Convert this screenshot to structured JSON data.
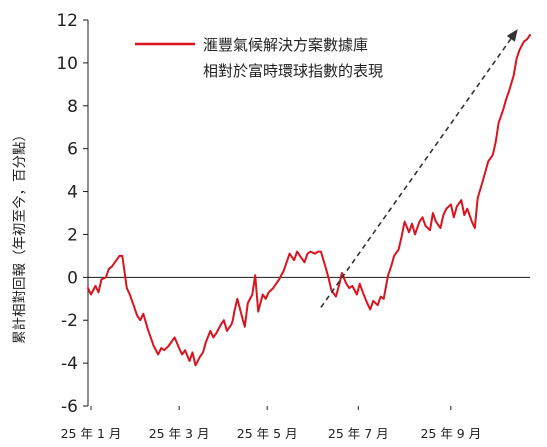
{
  "colors": {
    "series": "#d9141e",
    "axis": "#1a1a1a",
    "trend_arrow": "#333333"
  },
  "chart_data": {
    "type": "line",
    "title": "",
    "xlabel": "",
    "ylabel": "累計相對回報（年初至今，百分點）",
    "ylim": [
      -6,
      12
    ],
    "yticks": [
      "12",
      "10",
      "8",
      "6",
      "4",
      "2",
      "0",
      "-2",
      "-4",
      "-6"
    ],
    "xlim": [
      "2025-01-01",
      "2025-10-24"
    ],
    "xtick_labels": [
      {
        "date": "2025-01-03",
        "label": "25 年 1 月"
      },
      {
        "date": "2025-03-03",
        "label": "25 年 3 月"
      },
      {
        "date": "2025-05-01",
        "label": "25 年 5 月"
      },
      {
        "date": "2025-07-01",
        "label": "25 年 7 月"
      },
      {
        "date": "2025-09-01",
        "label": "25 年 9 月"
      }
    ],
    "grid": false,
    "legend_position": "top",
    "series": [
      {
        "name": "滙豐氣候解決方案數據庫相對於富時環球指數的表現",
        "color": "#d9141e",
        "points": [
          [
            "2025-01-01",
            -0.5
          ],
          [
            "2025-01-03",
            -0.8
          ],
          [
            "2025-01-06",
            -0.4
          ],
          [
            "2025-01-08",
            -0.7
          ],
          [
            "2025-01-10",
            -0.1
          ],
          [
            "2025-01-13",
            0.0
          ],
          [
            "2025-01-15",
            0.4
          ],
          [
            "2025-01-17",
            0.5
          ],
          [
            "2025-01-20",
            0.8
          ],
          [
            "2025-01-22",
            1.0
          ],
          [
            "2025-01-24",
            1.0
          ],
          [
            "2025-01-27",
            -0.5
          ],
          [
            "2025-01-29",
            -0.8
          ],
          [
            "2025-01-31",
            -1.2
          ],
          [
            "2025-02-03",
            -1.8
          ],
          [
            "2025-02-05",
            -2.0
          ],
          [
            "2025-02-07",
            -1.7
          ],
          [
            "2025-02-10",
            -2.4
          ],
          [
            "2025-02-12",
            -2.8
          ],
          [
            "2025-02-14",
            -3.2
          ],
          [
            "2025-02-17",
            -3.6
          ],
          [
            "2025-02-19",
            -3.3
          ],
          [
            "2025-02-21",
            -3.4
          ],
          [
            "2025-02-24",
            -3.2
          ],
          [
            "2025-02-26",
            -3.0
          ],
          [
            "2025-02-28",
            -2.8
          ],
          [
            "2025-03-03",
            -3.3
          ],
          [
            "2025-03-05",
            -3.6
          ],
          [
            "2025-03-07",
            -3.4
          ],
          [
            "2025-03-10",
            -3.9
          ],
          [
            "2025-03-12",
            -3.5
          ],
          [
            "2025-03-14",
            -4.1
          ],
          [
            "2025-03-17",
            -3.7
          ],
          [
            "2025-03-19",
            -3.5
          ],
          [
            "2025-03-21",
            -3.0
          ],
          [
            "2025-03-24",
            -2.5
          ],
          [
            "2025-03-26",
            -2.8
          ],
          [
            "2025-03-28",
            -2.6
          ],
          [
            "2025-03-31",
            -2.2
          ],
          [
            "2025-04-02",
            -2.0
          ],
          [
            "2025-04-04",
            -2.5
          ],
          [
            "2025-04-07",
            -2.2
          ],
          [
            "2025-04-08",
            -2.0
          ],
          [
            "2025-04-09",
            -1.6
          ],
          [
            "2025-04-11",
            -1.0
          ],
          [
            "2025-04-14",
            -1.8
          ],
          [
            "2025-04-16",
            -2.3
          ],
          [
            "2025-04-18",
            -1.2
          ],
          [
            "2025-04-21",
            -0.8
          ],
          [
            "2025-04-23",
            0.1
          ],
          [
            "2025-04-25",
            -1.6
          ],
          [
            "2025-04-28",
            -0.8
          ],
          [
            "2025-04-30",
            -1.0
          ],
          [
            "2025-05-02",
            -0.7
          ],
          [
            "2025-05-05",
            -0.5
          ],
          [
            "2025-05-07",
            -0.3
          ],
          [
            "2025-05-09",
            -0.1
          ],
          [
            "2025-05-12",
            0.3
          ],
          [
            "2025-05-14",
            0.7
          ],
          [
            "2025-05-16",
            1.1
          ],
          [
            "2025-05-19",
            0.8
          ],
          [
            "2025-05-21",
            1.2
          ],
          [
            "2025-05-23",
            1.0
          ],
          [
            "2025-05-26",
            0.7
          ],
          [
            "2025-05-28",
            1.1
          ],
          [
            "2025-05-30",
            1.2
          ],
          [
            "2025-06-02",
            1.1
          ],
          [
            "2025-06-04",
            1.2
          ],
          [
            "2025-06-06",
            1.2
          ],
          [
            "2025-06-09",
            0.5
          ],
          [
            "2025-06-11",
            0.0
          ],
          [
            "2025-06-13",
            -0.6
          ],
          [
            "2025-06-16",
            -0.9
          ],
          [
            "2025-06-18",
            -0.4
          ],
          [
            "2025-06-20",
            0.2
          ],
          [
            "2025-06-23",
            -0.3
          ],
          [
            "2025-06-25",
            -0.5
          ],
          [
            "2025-06-27",
            -0.4
          ],
          [
            "2025-06-30",
            -0.8
          ],
          [
            "2025-07-02",
            -0.3
          ],
          [
            "2025-07-04",
            -0.7
          ],
          [
            "2025-07-07",
            -1.2
          ],
          [
            "2025-07-09",
            -1.5
          ],
          [
            "2025-07-11",
            -1.1
          ],
          [
            "2025-07-14",
            -1.3
          ],
          [
            "2025-07-16",
            -0.9
          ],
          [
            "2025-07-18",
            -1.0
          ],
          [
            "2025-07-21",
            0.1
          ],
          [
            "2025-07-23",
            0.5
          ],
          [
            "2025-07-25",
            1.0
          ],
          [
            "2025-07-28",
            1.3
          ],
          [
            "2025-07-30",
            1.9
          ],
          [
            "2025-08-01",
            2.6
          ],
          [
            "2025-08-04",
            2.1
          ],
          [
            "2025-08-06",
            2.5
          ],
          [
            "2025-08-08",
            2.0
          ],
          [
            "2025-08-11",
            2.6
          ],
          [
            "2025-08-13",
            2.8
          ],
          [
            "2025-08-15",
            2.4
          ],
          [
            "2025-08-18",
            2.2
          ],
          [
            "2025-08-20",
            3.0
          ],
          [
            "2025-08-22",
            2.6
          ],
          [
            "2025-08-25",
            2.3
          ],
          [
            "2025-08-27",
            2.9
          ],
          [
            "2025-08-29",
            3.2
          ],
          [
            "2025-09-01",
            3.4
          ],
          [
            "2025-09-03",
            2.8
          ],
          [
            "2025-09-05",
            3.3
          ],
          [
            "2025-09-08",
            3.6
          ],
          [
            "2025-09-10",
            2.9
          ],
          [
            "2025-09-12",
            3.2
          ],
          [
            "2025-09-15",
            2.6
          ],
          [
            "2025-09-17",
            2.3
          ],
          [
            "2025-09-19",
            3.7
          ],
          [
            "2025-09-22",
            4.4
          ],
          [
            "2025-09-24",
            4.9
          ],
          [
            "2025-09-26",
            5.4
          ],
          [
            "2025-09-29",
            5.7
          ],
          [
            "2025-10-01",
            6.3
          ],
          [
            "2025-10-03",
            7.2
          ],
          [
            "2025-10-06",
            7.8
          ],
          [
            "2025-10-08",
            8.3
          ],
          [
            "2025-10-10",
            8.7
          ],
          [
            "2025-10-13",
            9.4
          ],
          [
            "2025-10-15",
            10.2
          ],
          [
            "2025-10-17",
            10.6
          ],
          [
            "2025-10-20",
            11.0
          ],
          [
            "2025-10-22",
            11.1
          ],
          [
            "2025-10-24",
            11.3
          ]
        ]
      }
    ],
    "annotations": [
      {
        "type": "dashed-arrow",
        "from": [
          "2025-06-06",
          -1.4
        ],
        "to": [
          "2025-10-15",
          11.5
        ]
      }
    ]
  }
}
